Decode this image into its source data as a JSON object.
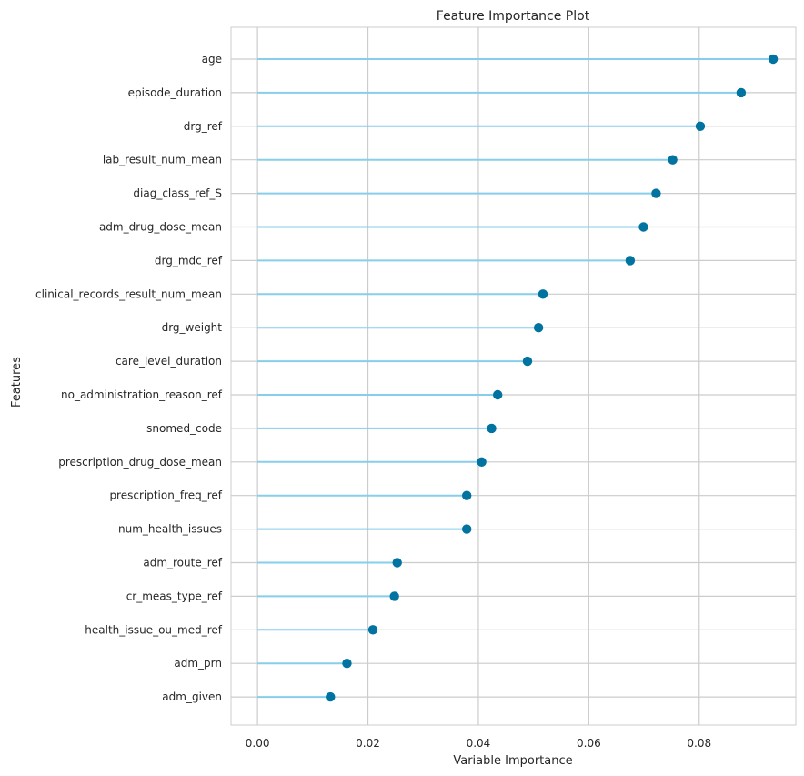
{
  "chart_data": {
    "type": "lollipop",
    "title": "Feature Importance Plot",
    "xlabel": "Variable Importance",
    "ylabel": "Features",
    "xlim": [
      -0.0048,
      0.0975
    ],
    "xticks": [
      0.0,
      0.02,
      0.04,
      0.06,
      0.08
    ],
    "xtick_labels": [
      "0.00",
      "0.02",
      "0.04",
      "0.06",
      "0.08"
    ],
    "grid": true,
    "colors": {
      "stem": "#87ceeb",
      "marker": "#0173a0",
      "grid": "#cccccc",
      "spine": "#cccccc"
    },
    "categories": [
      "age",
      "episode_duration",
      "drg_ref",
      "lab_result_num_mean",
      "diag_class_ref_S",
      "adm_drug_dose_mean",
      "drg_mdc_ref",
      "clinical_records_result_num_mean",
      "drg_weight",
      "care_level_duration",
      "no_administration_reason_ref",
      "snomed_code",
      "prescription_drug_dose_mean",
      "prescription_freq_ref",
      "num_health_issues",
      "adm_route_ref",
      "cr_meas_type_ref",
      "health_issue_ou_med_ref",
      "adm_prn",
      "adm_given"
    ],
    "values": [
      0.0934,
      0.0876,
      0.0802,
      0.0752,
      0.0722,
      0.0699,
      0.0675,
      0.0517,
      0.0509,
      0.0489,
      0.0435,
      0.0424,
      0.0406,
      0.0379,
      0.0379,
      0.0253,
      0.0248,
      0.0209,
      0.0162,
      0.0132
    ]
  }
}
